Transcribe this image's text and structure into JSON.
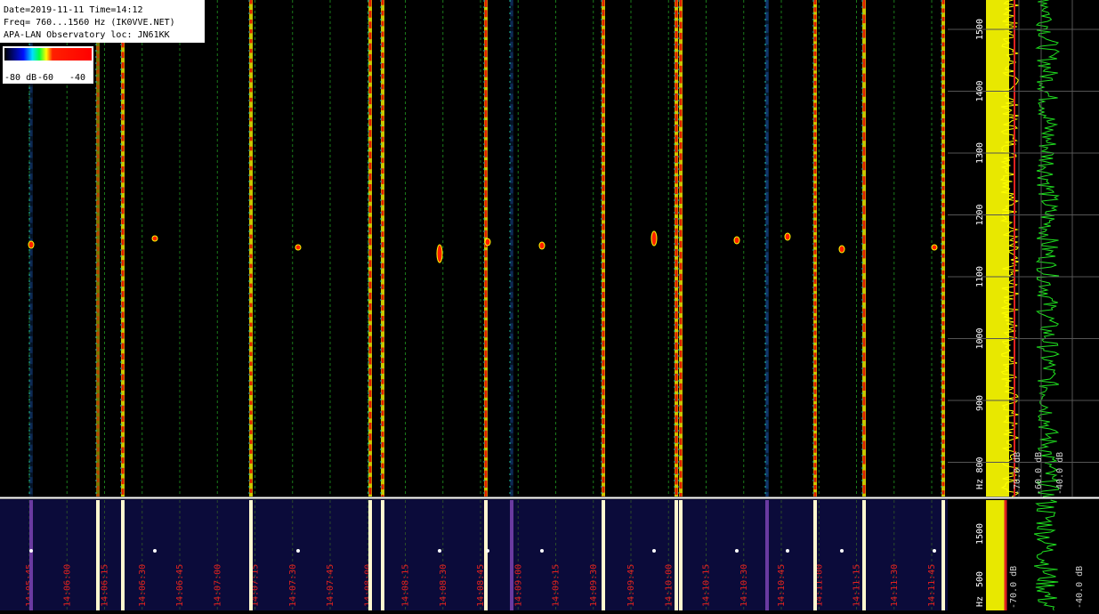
{
  "header": {
    "lines": [
      "Date=2019-11-11 Time=14:12",
      "Freq= 760...1560 Hz (IK0VVE.NET)",
      "APA-LAN Observatory loc: JN61KK"
    ]
  },
  "colorbar": {
    "labels": [
      "-80 dB",
      "-60",
      "-40"
    ]
  },
  "freq_axis": {
    "labels": [
      "1500",
      "1400",
      "1300",
      "1200",
      "1100",
      "1000",
      "900",
      "800"
    ],
    "unit": "Hz"
  },
  "level_axis": {
    "labels": [
      "-70.0 dB",
      "-60.0 dB",
      "-40.0 dB"
    ]
  },
  "strip_freq_axis": {
    "labels": [
      "1500",
      "500"
    ],
    "unit": "Hz"
  },
  "strip_level_axis": {
    "labels": [
      "-70.0 dB",
      "-40.0 dB"
    ]
  },
  "time_axis": {
    "labels": [
      "14:05:45",
      "14:06:00",
      "14:06:15",
      "14:06:30",
      "14:06:45",
      "14:07:00",
      "14:07:15",
      "14:07:30",
      "14:07:45",
      "14:08:00",
      "14:08:15",
      "14:08:30",
      "14:08:45",
      "14:09:00",
      "14:09:15",
      "14:09:30",
      "14:09:45",
      "14:10:00",
      "14:10:15",
      "14:10:30",
      "14:10:45",
      "14:11:00",
      "14:11:15",
      "14:11:30",
      "14:11:45"
    ]
  }
}
